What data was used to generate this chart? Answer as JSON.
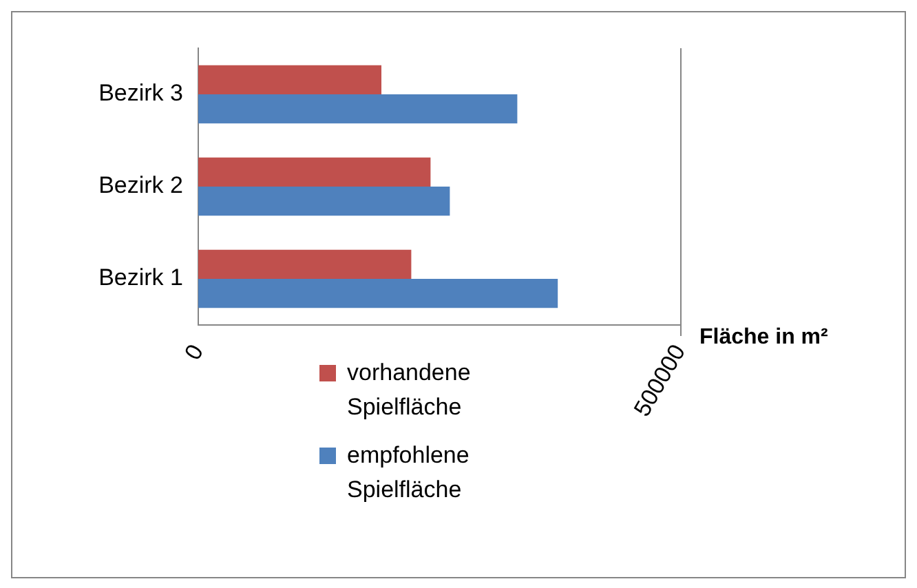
{
  "chart_data": {
    "type": "bar",
    "orientation": "horizontal",
    "xlabel": "Fläche in m²",
    "categories": [
      "Bezirk 3",
      "Bezirk 2",
      "Bezirk 1"
    ],
    "series": [
      {
        "name": "vorhandene Spielfläche",
        "color": "#c0504d",
        "values": [
          190000,
          241000,
          221000
        ]
      },
      {
        "name": "empfohlene Spielfläche",
        "color": "#4f81bd",
        "values": [
          331000,
          261000,
          373000
        ]
      }
    ],
    "xlim": [
      0,
      500000
    ],
    "xticks": [
      0,
      500000
    ],
    "legend": "bottom"
  }
}
